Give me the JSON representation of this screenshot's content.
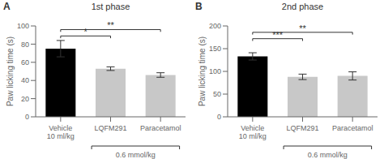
{
  "chart_data": [
    {
      "type": "bar",
      "panel_label": "A",
      "title": "1st phase",
      "y_label": "Paw licking time (s)",
      "categories": [
        "Vehicle\n10 ml/kg",
        "LQFM291",
        "Paracetamol"
      ],
      "values": [
        75,
        53,
        46
      ],
      "errors": [
        9,
        2,
        2.5
      ],
      "colors": [
        "black",
        "#c8c8c8",
        "#c8c8c8"
      ],
      "ylim": [
        0,
        100
      ],
      "yticks": [
        0,
        20,
        40,
        60,
        80,
        100
      ],
      "significance": [
        {
          "from": 0,
          "to": 1,
          "y": 89,
          "label": "*"
        },
        {
          "from": 0,
          "to": 2,
          "y": 96,
          "label": "**"
        }
      ],
      "x_bracket": {
        "from": 1,
        "to": 2,
        "label": "0.6 mmol/kg"
      }
    },
    {
      "type": "bar",
      "panel_label": "B",
      "title": "2nd phase",
      "y_label": "Paw licking time (s)",
      "categories": [
        "Vehicle\n10 ml/kg",
        "LQFM291",
        "Paracetamol"
      ],
      "values": [
        133,
        88,
        90
      ],
      "errors": [
        8,
        6,
        9
      ],
      "colors": [
        "black",
        "#c8c8c8",
        "#c8c8c8"
      ],
      "ylim": [
        0,
        200
      ],
      "yticks": [
        0,
        50,
        100,
        150,
        200
      ],
      "significance": [
        {
          "from": 0,
          "to": 1,
          "y": 172,
          "label": "***"
        },
        {
          "from": 0,
          "to": 2,
          "y": 186,
          "label": "**"
        }
      ],
      "x_bracket": {
        "from": 1,
        "to": 2,
        "label": "0.6 mmol/kg"
      }
    }
  ]
}
